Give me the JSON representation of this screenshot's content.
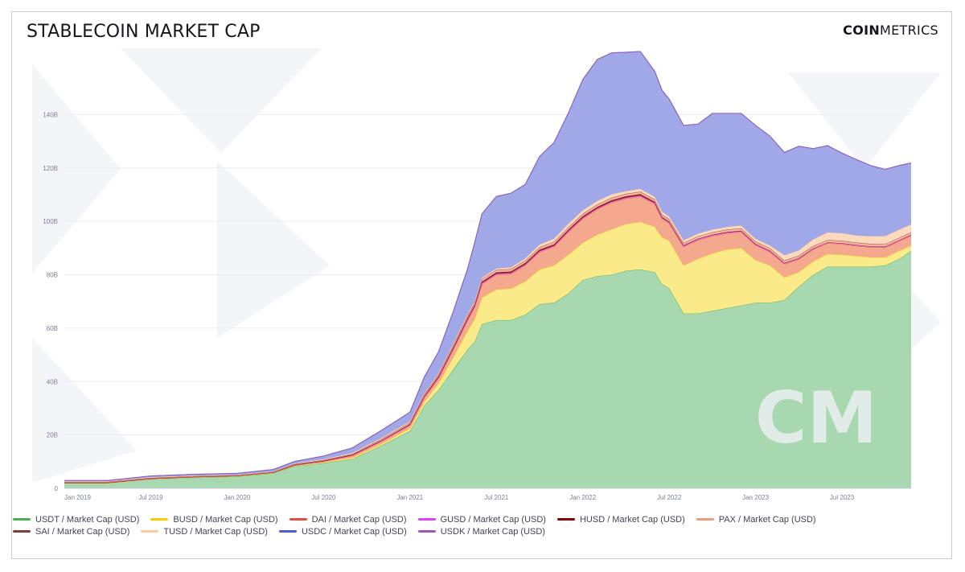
{
  "header": {
    "title": "STABLECOIN MARKET CAP",
    "brand_bold": "COIN",
    "brand_light": "METRICS",
    "watermark": "CM"
  },
  "chart_data": {
    "type": "area",
    "stacked": true,
    "title": "STABLECOIN MARKET CAP",
    "xlabel": "",
    "ylabel": "",
    "ylim": [
      0,
      160
    ],
    "y_unit": "B USD",
    "y_ticks": [
      {
        "value": 0,
        "label": "0"
      },
      {
        "value": 20,
        "label": "20B"
      },
      {
        "value": 40,
        "label": "40B"
      },
      {
        "value": 60,
        "label": "60B"
      },
      {
        "value": 80,
        "label": "80B"
      },
      {
        "value": 100,
        "label": "100B"
      },
      {
        "value": 120,
        "label": "120B"
      },
      {
        "value": 140,
        "label": "140B"
      }
    ],
    "x_range_months": [
      0,
      58.8
    ],
    "x_ticks": [
      {
        "month": 0,
        "label": "Jan 2019"
      },
      {
        "month": 6,
        "label": "Jul 2019"
      },
      {
        "month": 12,
        "label": "Jan 2020"
      },
      {
        "month": 18,
        "label": "Jul 2020"
      },
      {
        "month": 24,
        "label": "Jan 2021"
      },
      {
        "month": 30,
        "label": "Jul 2021"
      },
      {
        "month": 36,
        "label": "Jan 2022"
      },
      {
        "month": 42,
        "label": "Jul 2022"
      },
      {
        "month": 48,
        "label": "Jan 2023"
      },
      {
        "month": 54,
        "label": "Jul 2023"
      }
    ],
    "months": [
      0,
      3,
      6,
      9,
      12,
      14.5,
      16,
      18,
      20,
      22,
      24,
      25,
      26,
      27,
      28,
      28.5,
      29,
      30,
      31,
      32,
      33,
      34,
      35,
      36,
      37,
      38,
      39,
      40,
      41,
      41.5,
      42,
      43,
      44,
      45,
      46,
      47,
      48,
      49,
      50,
      51,
      52,
      53,
      54,
      55,
      56,
      57,
      58,
      58.8
    ],
    "series": [
      {
        "name": "USDT / Market Cap (USD)",
        "color": "#4caf50",
        "fill": "#a8d8b0",
        "values": [
          2,
          2,
          3.5,
          4.1,
          4.5,
          5.7,
          8.3,
          9.5,
          11.0,
          16.0,
          21.5,
          31.0,
          37.0,
          44.5,
          52.0,
          55.0,
          61.5,
          63.0,
          63.0,
          65.0,
          69.0,
          69.5,
          73.0,
          78.0,
          79.5,
          80.0,
          81.5,
          82.0,
          81.0,
          76.5,
          75.0,
          65.5,
          65.5,
          66.5,
          67.5,
          68.5,
          69.5,
          69.5,
          70.5,
          75.5,
          80.0,
          83.0,
          83.0,
          83.0,
          83.0,
          83.5,
          86.0,
          89.0
        ]
      },
      {
        "name": "BUSD / Market Cap (USD)",
        "color": "#f5d000",
        "fill": "#fbea8a",
        "values": [
          0,
          0,
          0,
          0.05,
          0.1,
          0.1,
          0.2,
          0.3,
          0.5,
          0.6,
          1.0,
          1.5,
          2.5,
          4.5,
          7.0,
          8.5,
          10.0,
          11.5,
          11.8,
          12.5,
          13.0,
          14.0,
          14.5,
          14.0,
          15.5,
          17.0,
          17.5,
          17.8,
          17.0,
          17.5,
          17.8,
          18.0,
          20.5,
          21.5,
          22.0,
          21.5,
          16.0,
          14.0,
          8.5,
          5.5,
          5.0,
          4.8,
          4.5,
          4.0,
          3.5,
          3.0,
          3.0,
          2.0
        ]
      },
      {
        "name": "DAI / Market Cap (USD)",
        "color": "#e74c3c",
        "fill": "#f4a98f",
        "values": [
          0.08,
          0.08,
          0.1,
          0.12,
          0.1,
          0.15,
          0.2,
          0.3,
          0.8,
          1.0,
          1.2,
          1.6,
          2.0,
          3.0,
          4.0,
          4.5,
          5.0,
          5.5,
          5.5,
          6.0,
          6.5,
          7.0,
          8.5,
          9.0,
          9.5,
          10.0,
          9.5,
          9.5,
          8.5,
          7.0,
          6.5,
          7.0,
          7.0,
          6.5,
          6.0,
          6.0,
          5.5,
          5.0,
          5.0,
          4.8,
          4.5,
          4.0,
          4.0,
          3.8,
          3.8,
          3.7,
          3.7,
          3.6
        ]
      },
      {
        "name": "GUSD / Market Cap (USD)",
        "color": "#e040fb",
        "fill": "#e79af0",
        "values": [
          0.05,
          0.05,
          0.05,
          0.05,
          0.05,
          0.05,
          0.05,
          0.05,
          0.05,
          0.05,
          0.1,
          0.1,
          0.1,
          0.1,
          0.2,
          0.2,
          0.3,
          0.3,
          0.3,
          0.3,
          0.3,
          0.3,
          0.3,
          0.3,
          0.3,
          0.3,
          0.3,
          0.3,
          0.3,
          0.3,
          0.3,
          0.3,
          0.3,
          0.3,
          0.3,
          0.3,
          0.3,
          0.3,
          0.3,
          0.3,
          0.3,
          0.3,
          0.3,
          0.3,
          0.3,
          0.3,
          0.3,
          0.3
        ]
      },
      {
        "name": "HUSD / Market Cap (USD)",
        "color": "#8b0000",
        "fill": "#9c2a2a",
        "values": [
          0,
          0,
          0,
          0,
          0,
          0,
          0.1,
          0.15,
          0.2,
          0.25,
          0.3,
          0.4,
          0.5,
          0.6,
          0.6,
          0.6,
          0.6,
          0.6,
          0.6,
          0.6,
          0.6,
          0.6,
          0.6,
          0.6,
          0.6,
          0.6,
          0.6,
          0.6,
          0.5,
          0.4,
          0.3,
          0.2,
          0.2,
          0.2,
          0.2,
          0.2,
          0.2,
          0.2,
          0.1,
          0.1,
          0.05,
          0.05,
          0.05,
          0.05,
          0.05,
          0.05,
          0.05,
          0.05
        ]
      },
      {
        "name": "PAX / Market Cap (USD)",
        "color": "#f39c7a",
        "fill": "#f5b8a2",
        "values": [
          0.2,
          0.2,
          0.2,
          0.2,
          0.2,
          0.2,
          0.2,
          0.25,
          0.3,
          0.5,
          0.6,
          0.7,
          0.8,
          0.9,
          0.9,
          0.9,
          0.9,
          0.9,
          0.9,
          0.9,
          0.9,
          0.9,
          0.9,
          0.9,
          0.9,
          0.9,
          0.9,
          0.9,
          0.9,
          0.9,
          0.9,
          0.9,
          0.9,
          0.9,
          0.9,
          0.9,
          0.9,
          0.9,
          0.9,
          0.9,
          0.9,
          0.9,
          0.9,
          0.9,
          0.9,
          0.9,
          0.9,
          0.9
        ]
      },
      {
        "name": "SAI / Market Cap (USD)",
        "color": "#7b3f3f",
        "fill": "#a06060",
        "values": [
          0.1,
          0.1,
          0.08,
          0.06,
          0.05,
          0.04,
          0.03,
          0.02,
          0.02,
          0.02,
          0.02,
          0.02,
          0.01,
          0.01,
          0.01,
          0.01,
          0.01,
          0.01,
          0.01,
          0.01,
          0.01,
          0.01,
          0.01,
          0.01,
          0.01,
          0.01,
          0.01,
          0.01,
          0.01,
          0.01,
          0.01,
          0.01,
          0.01,
          0.01,
          0.01,
          0.01,
          0.01,
          0.01,
          0.01,
          0.01,
          0.01,
          0.01,
          0.01,
          0.01,
          0.01,
          0.01,
          0.01,
          0.01
        ]
      },
      {
        "name": "TUSD / Market Cap (USD)",
        "color": "#fdc9a0",
        "fill": "#fdd9bd",
        "values": [
          0.2,
          0.2,
          0.2,
          0.2,
          0.1,
          0.1,
          0.2,
          0.3,
          0.4,
          0.4,
          0.4,
          0.4,
          0.4,
          0.5,
          0.5,
          0.5,
          0.5,
          0.5,
          0.6,
          0.8,
          1.0,
          1.2,
          1.3,
          1.3,
          1.3,
          1.3,
          1.0,
          1.0,
          1.0,
          1.0,
          1.0,
          1.0,
          1.0,
          1.0,
          1.0,
          1.0,
          1.0,
          1.0,
          2.0,
          2.0,
          2.5,
          2.8,
          2.8,
          2.6,
          2.8,
          3.0,
          3.0,
          3.0
        ]
      },
      {
        "name": "USDC / Market Cap (USD)",
        "color": "#4a5fd0",
        "fill": "#a0a8e8",
        "values": [
          0.3,
          0.3,
          0.5,
          0.5,
          0.5,
          0.7,
          0.8,
          1.2,
          1.9,
          2.8,
          3.4,
          6.0,
          8.0,
          12.0,
          17.0,
          22.0,
          24.0,
          27.0,
          27.8,
          27.7,
          33.0,
          36.0,
          41.5,
          49.0,
          53.0,
          53.0,
          52.0,
          51.5,
          47.0,
          45.5,
          44.0,
          43.0,
          41.0,
          43.5,
          42.5,
          42.0,
          42.5,
          41.0,
          38.5,
          39.0,
          34.0,
          32.5,
          30.0,
          28.5,
          26.5,
          25.0,
          24.0,
          23.0
        ]
      },
      {
        "name": "USDK / Market Cap (USD)",
        "color": "#9b59b6",
        "fill": "#c79bd9",
        "values": [
          0,
          0,
          0,
          0,
          0.02,
          0.02,
          0.02,
          0.02,
          0.02,
          0.02,
          0.02,
          0.02,
          0.02,
          0.02,
          0.02,
          0.02,
          0.02,
          0.02,
          0.02,
          0.02,
          0.02,
          0.02,
          0.02,
          0.02,
          0.02,
          0.02,
          0.02,
          0.02,
          0.02,
          0.02,
          0.02,
          0.02,
          0.02,
          0.02,
          0.02,
          0.02,
          0.02,
          0.02,
          0.02,
          0.02,
          0.02,
          0.02,
          0.02,
          0.02,
          0.02,
          0.02,
          0.02,
          0.02
        ]
      }
    ],
    "legend_placement": "bottom"
  }
}
